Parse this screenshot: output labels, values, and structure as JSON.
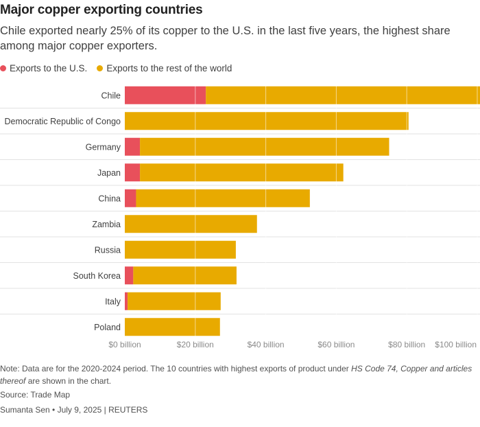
{
  "header": {
    "title": "Major copper exporting countries",
    "subtitle": "Chile exported nearly 25% of its copper to the U.S. in the last five years, the highest share among major copper exporters."
  },
  "legend": [
    {
      "label": "Exports to the U.S.",
      "color": "#e8505b"
    },
    {
      "label": "Exports to the rest of the world",
      "color": "#e8aa00"
    }
  ],
  "chart_data": {
    "type": "bar",
    "orientation": "horizontal",
    "stacked": true,
    "categories": [
      "Chile",
      "Democratic Republic of Congo",
      "Germany",
      "Japan",
      "China",
      "Zambia",
      "Russia",
      "South Korea",
      "Italy",
      "Poland"
    ],
    "series": [
      {
        "name": "Exports to the U.S.",
        "color": "#e8505b",
        "values": [
          23,
          0,
          4.3,
          4.3,
          3.2,
          0,
          0,
          2.4,
          0.8,
          0
        ]
      },
      {
        "name": "Exports to the rest of the world",
        "color": "#e8aa00",
        "values": [
          78,
          80.5,
          70.7,
          57.7,
          49.3,
          37.5,
          31.5,
          29.3,
          26.4,
          27
        ]
      }
    ],
    "xlim": [
      0,
      100
    ],
    "xticks": [
      0,
      20,
      40,
      60,
      80,
      100
    ],
    "xtick_labels": [
      "$0 billion",
      "$20 billion",
      "$40 billion",
      "$60 billion",
      "$80 billion",
      "$100 billion"
    ],
    "grid": true
  },
  "footer": {
    "note_prefix": "Note: Data are for the 2020-2024 period. The 10 countries with highest exports of product under ",
    "note_italic": "HS Code 74, Copper and articles thereof",
    "note_suffix": " are shown in the chart.",
    "source": "Source: Trade Map",
    "credit": "Sumanta Sen • July 9, 2025 | REUTERS"
  }
}
